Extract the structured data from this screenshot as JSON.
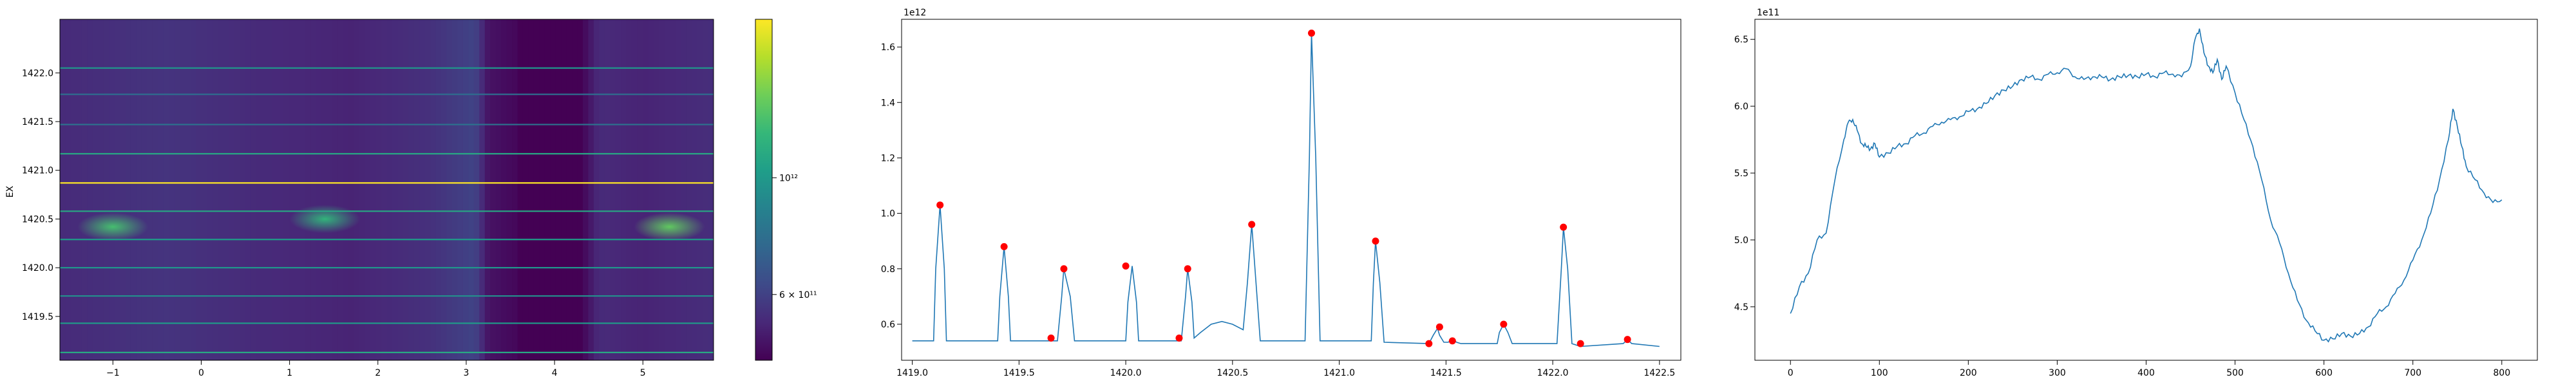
{
  "colors": {
    "line": "#1f77b4",
    "peak_marker": "#ff0000",
    "frame": "#000000",
    "viridis": [
      "#440154",
      "#482878",
      "#3e4a89",
      "#31688e",
      "#26828e",
      "#1f9e89",
      "#35b779",
      "#6ece58",
      "#b5de2b",
      "#fde725"
    ]
  },
  "chart_data": [
    {
      "type": "heatmap",
      "title": "",
      "xlabel": "",
      "ylabel": "EX",
      "xlim": [
        -1.6,
        5.8
      ],
      "ylim": [
        1419.05,
        1422.55
      ],
      "xticks": [
        -1,
        0,
        1,
        2,
        3,
        4,
        5
      ],
      "xtick_labels": [
        "−1",
        "0",
        "1",
        "2",
        "3",
        "4",
        "5"
      ],
      "yticks": [
        1419.5,
        1420.0,
        1420.5,
        1421.0,
        1421.5,
        1422.0
      ],
      "ytick_labels": [
        "1419.5",
        "1420.0",
        "1420.5",
        "1421.0",
        "1421.5",
        "1422.0"
      ],
      "color_scale": "log",
      "colormap": "viridis",
      "colorbar": {
        "range": [
          450000000000,
          2000000000000
        ],
        "tick_values": [
          600000000000,
          1000000000000
        ],
        "tick_labels": [
          "6 × 10¹¹",
          "10¹²"
        ]
      },
      "column_profile": [
        [
          -1.6,
          0.12
        ],
        [
          -0.4,
          0.15
        ],
        [
          0.6,
          0.12
        ],
        [
          1.7,
          0.1
        ],
        [
          2.6,
          0.14
        ],
        [
          3.1,
          0.2
        ],
        [
          3.25,
          0.05
        ],
        [
          3.55,
          0.02
        ],
        [
          3.6,
          0.0
        ],
        [
          4.3,
          0.0
        ],
        [
          4.5,
          0.12
        ],
        [
          5.0,
          0.1
        ],
        [
          5.8,
          0.13
        ]
      ],
      "horizontal_lines": [
        {
          "y": 1422.05,
          "level": 0.52
        },
        {
          "y": 1421.78,
          "level": 0.35
        },
        {
          "y": 1421.47,
          "level": 0.38
        },
        {
          "y": 1421.17,
          "level": 0.6
        },
        {
          "y": 1420.87,
          "level": 1.0
        },
        {
          "y": 1420.58,
          "level": 0.6
        },
        {
          "y": 1420.29,
          "level": 0.55
        },
        {
          "y": 1420.0,
          "level": 0.52
        },
        {
          "y": 1419.71,
          "level": 0.5
        },
        {
          "y": 1419.43,
          "level": 0.55
        },
        {
          "y": 1419.13,
          "level": 0.6
        }
      ],
      "hotspots": [
        {
          "x": -1.0,
          "y": 1420.42,
          "level": 0.7
        },
        {
          "x": 1.4,
          "y": 1420.5,
          "level": 0.65
        },
        {
          "x": 5.3,
          "y": 1420.42,
          "level": 0.75
        }
      ]
    },
    {
      "type": "line",
      "title": "",
      "xlabel": "",
      "ylabel": "",
      "offset_text": "1e12",
      "xlim": [
        1418.95,
        1422.6
      ],
      "ylim": [
        0.47,
        1.7
      ],
      "xticks": [
        1419.0,
        1419.5,
        1420.0,
        1420.5,
        1421.0,
        1421.5,
        1422.0,
        1422.5
      ],
      "xtick_labels": [
        "1419.0",
        "1419.5",
        "1420.0",
        "1420.5",
        "1421.0",
        "1421.5",
        "1422.0",
        "1422.5"
      ],
      "yticks": [
        0.6,
        0.8,
        1.0,
        1.2,
        1.4,
        1.6
      ],
      "ytick_labels": [
        "0.6",
        "0.8",
        "1.0",
        "1.2",
        "1.4",
        "1.6"
      ],
      "series": [
        {
          "x": [
            1419.0,
            1419.1,
            1419.11,
            1419.13,
            1419.15,
            1419.16,
            1419.4,
            1419.41,
            1419.43,
            1419.45,
            1419.46,
            1419.68,
            1419.7,
            1419.71,
            1419.74,
            1419.76,
            1420.0,
            1420.01,
            1420.03,
            1420.05,
            1420.06,
            1420.25,
            1420.26,
            1420.28,
            1420.29,
            1420.31,
            1420.32,
            1420.35,
            1420.4,
            1420.45,
            1420.5,
            1420.55,
            1420.57,
            1420.59,
            1420.61,
            1420.63,
            1420.84,
            1420.86,
            1420.87,
            1420.89,
            1420.91,
            1421.15,
            1421.16,
            1421.17,
            1421.19,
            1421.21,
            1421.42,
            1421.44,
            1421.46,
            1421.47,
            1421.49,
            1421.51,
            1421.53,
            1421.55,
            1421.57,
            1421.74,
            1421.75,
            1421.77,
            1421.79,
            1421.81,
            1422.02,
            1422.04,
            1422.05,
            1422.07,
            1422.09,
            1422.13,
            1422.33,
            1422.35,
            1422.37,
            1422.5
          ],
          "y": [
            0.54,
            0.54,
            0.8,
            1.03,
            0.8,
            0.54,
            0.54,
            0.7,
            0.88,
            0.7,
            0.54,
            0.54,
            0.7,
            0.8,
            0.7,
            0.54,
            0.54,
            0.68,
            0.81,
            0.68,
            0.54,
            0.54,
            0.54,
            0.7,
            0.8,
            0.68,
            0.55,
            0.57,
            0.6,
            0.61,
            0.6,
            0.58,
            0.75,
            0.96,
            0.75,
            0.54,
            0.54,
            1.2,
            1.65,
            1.2,
            0.54,
            0.54,
            0.75,
            0.9,
            0.75,
            0.535,
            0.53,
            0.56,
            0.585,
            0.56,
            0.535,
            0.535,
            0.545,
            0.535,
            0.53,
            0.53,
            0.57,
            0.6,
            0.57,
            0.53,
            0.53,
            0.8,
            0.95,
            0.8,
            0.53,
            0.52,
            0.53,
            0.545,
            0.53,
            0.52
          ]
        }
      ],
      "peaks": [
        [
          1419.13,
          1.03
        ],
        [
          1419.43,
          0.88
        ],
        [
          1419.65,
          0.55
        ],
        [
          1419.71,
          0.8
        ],
        [
          1420.0,
          0.81
        ],
        [
          1420.25,
          0.55
        ],
        [
          1420.29,
          0.8
        ],
        [
          1420.59,
          0.96
        ],
        [
          1420.87,
          1.65
        ],
        [
          1421.17,
          0.9
        ],
        [
          1421.42,
          0.53
        ],
        [
          1421.47,
          0.59
        ],
        [
          1421.53,
          0.54
        ],
        [
          1421.77,
          0.6
        ],
        [
          1422.05,
          0.95
        ],
        [
          1422.13,
          0.53
        ],
        [
          1422.35,
          0.545
        ]
      ]
    },
    {
      "type": "line",
      "title": "",
      "xlabel": "",
      "ylabel": "",
      "offset_text": "1e11",
      "xlim": [
        -40,
        840
      ],
      "ylim": [
        4.1,
        6.65
      ],
      "xticks": [
        0,
        100,
        200,
        300,
        400,
        500,
        600,
        700,
        800
      ],
      "xtick_labels": [
        "0",
        "100",
        "200",
        "300",
        "400",
        "500",
        "600",
        "700",
        "800"
      ],
      "yticks": [
        4.5,
        5.0,
        5.5,
        6.0,
        6.5
      ],
      "ytick_labels": [
        "4.5",
        "5.0",
        "5.5",
        "6.0",
        "6.5"
      ],
      "series": [
        {
          "x": [
            0,
            10,
            20,
            30,
            40,
            50,
            60,
            65,
            70,
            75,
            80,
            85,
            90,
            95,
            100,
            110,
            120,
            130,
            140,
            150,
            160,
            170,
            180,
            190,
            200,
            210,
            220,
            230,
            240,
            250,
            260,
            270,
            280,
            290,
            300,
            310,
            320,
            330,
            340,
            350,
            360,
            370,
            380,
            390,
            400,
            410,
            420,
            430,
            440,
            450,
            455,
            460,
            465,
            470,
            475,
            480,
            485,
            490,
            500,
            510,
            520,
            530,
            540,
            550,
            560,
            570,
            580,
            590,
            600,
            610,
            620,
            630,
            640,
            650,
            660,
            670,
            680,
            690,
            700,
            710,
            720,
            730,
            740,
            745,
            750,
            755,
            760,
            770,
            780,
            790,
            800
          ],
          "y": [
            4.45,
            4.65,
            4.75,
            5.0,
            5.05,
            5.45,
            5.75,
            5.88,
            5.9,
            5.82,
            5.72,
            5.7,
            5.68,
            5.72,
            5.62,
            5.65,
            5.7,
            5.72,
            5.78,
            5.8,
            5.85,
            5.88,
            5.9,
            5.92,
            5.96,
            5.98,
            6.02,
            6.08,
            6.12,
            6.15,
            6.2,
            6.22,
            6.2,
            6.24,
            6.25,
            6.28,
            6.22,
            6.2,
            6.22,
            6.22,
            6.2,
            6.22,
            6.23,
            6.22,
            6.24,
            6.22,
            6.25,
            6.24,
            6.22,
            6.3,
            6.5,
            6.58,
            6.4,
            6.3,
            6.25,
            6.35,
            6.2,
            6.3,
            6.1,
            5.9,
            5.7,
            5.45,
            5.15,
            4.98,
            4.75,
            4.55,
            4.4,
            4.32,
            4.25,
            4.26,
            4.3,
            4.28,
            4.3,
            4.35,
            4.45,
            4.5,
            4.6,
            4.7,
            4.85,
            5.0,
            5.2,
            5.45,
            5.75,
            5.98,
            5.85,
            5.7,
            5.55,
            5.45,
            5.35,
            5.28,
            5.3
          ]
        }
      ]
    }
  ]
}
